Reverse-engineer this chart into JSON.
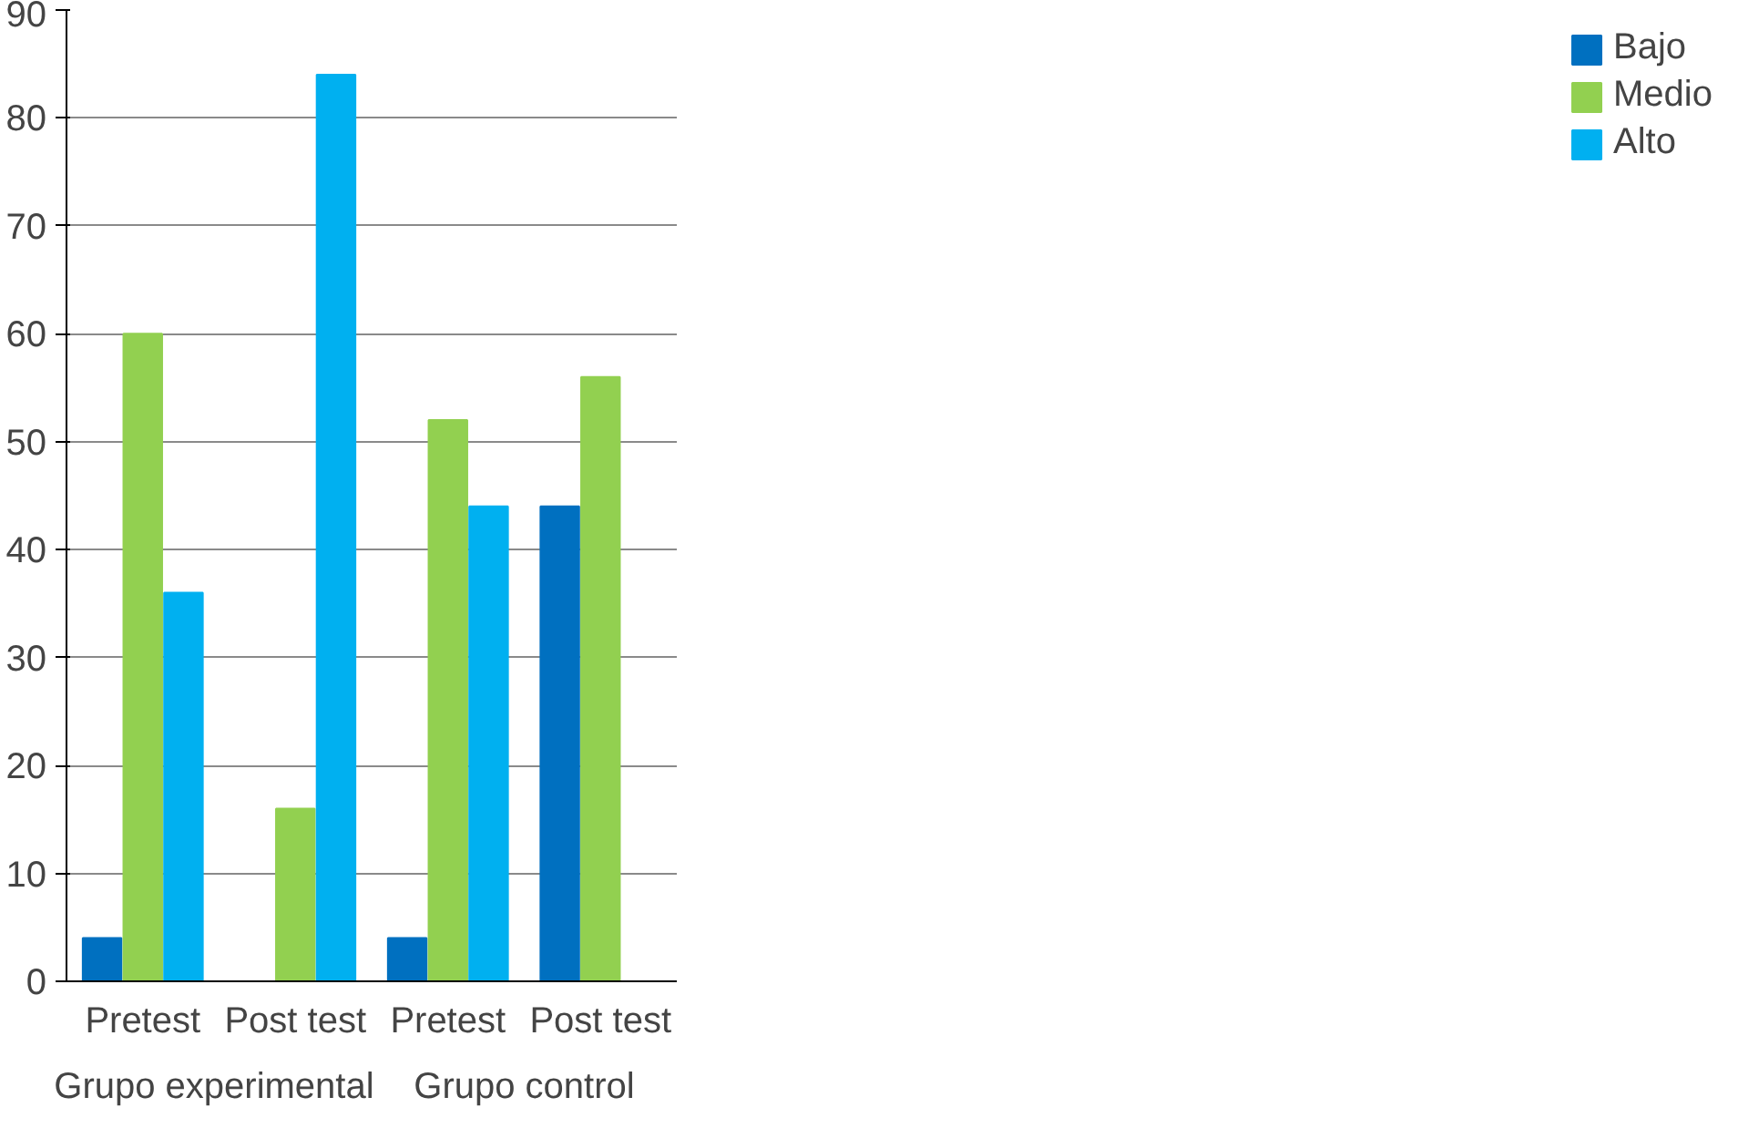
{
  "chart_data": {
    "type": "bar",
    "categories": [
      "Pretest",
      "Post test",
      "Pretest",
      "Post test"
    ],
    "series": [
      {
        "name": "Bajo",
        "color": "#0070c0",
        "values": [
          4,
          0,
          4,
          44
        ]
      },
      {
        "name": "Medio",
        "color": "#92d050",
        "values": [
          60,
          16,
          52,
          56
        ]
      },
      {
        "name": "Alto",
        "color": "#00b0f0",
        "values": [
          36,
          84,
          44,
          0
        ]
      }
    ],
    "ylim": [
      0,
      90
    ],
    "yticks": [
      0,
      10,
      20,
      30,
      40,
      50,
      60,
      70,
      80,
      90
    ],
    "grid": "y",
    "legend": "right",
    "annotations": [
      "Grupo  experimental",
      "Grupo control"
    ]
  }
}
